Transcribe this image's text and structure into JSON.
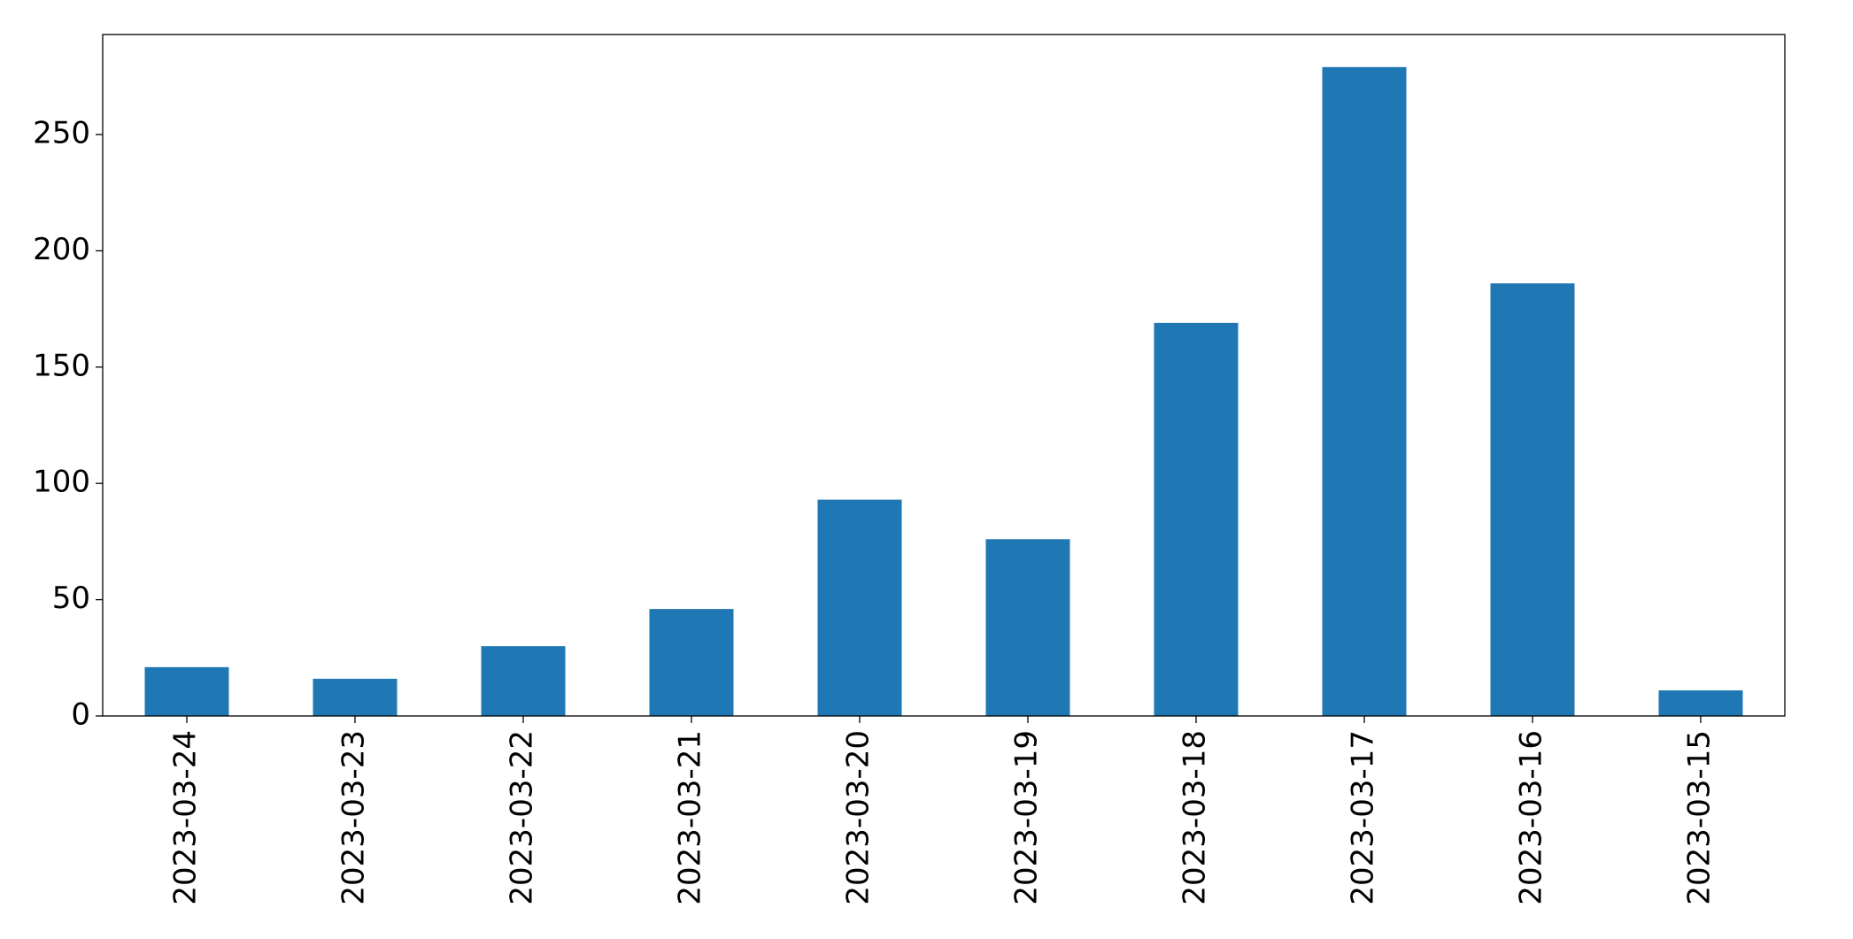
{
  "chart_data": {
    "type": "bar",
    "categories": [
      "2023-03-24",
      "2023-03-23",
      "2023-03-22",
      "2023-03-21",
      "2023-03-20",
      "2023-03-19",
      "2023-03-18",
      "2023-03-17",
      "2023-03-16",
      "2023-03-15"
    ],
    "values": [
      21,
      16,
      30,
      46,
      93,
      76,
      169,
      279,
      186,
      11
    ],
    "color": "#1f77b4",
    "ylim": [
      0,
      293
    ],
    "yticks": [
      0,
      50,
      100,
      150,
      200,
      250
    ],
    "grid": false
  }
}
